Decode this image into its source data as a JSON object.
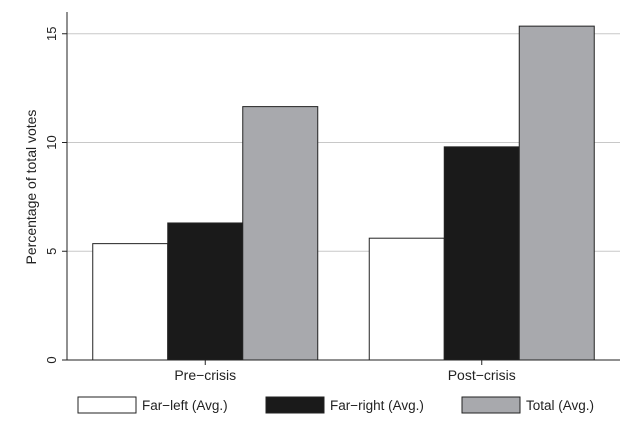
{
  "chart_data": {
    "type": "bar",
    "title": "",
    "xlabel": "",
    "ylabel": "Percentage of total votes",
    "categories": [
      "Pre−crisis",
      "Post−crisis"
    ],
    "series": [
      {
        "name": "Far−left (Avg.)",
        "values": [
          5.35,
          5.6
        ],
        "color": "#ffffff"
      },
      {
        "name": "Far−right (Avg.)",
        "values": [
          6.3,
          9.8
        ],
        "color": "#1a1a1a"
      },
      {
        "name": "Total (Avg.)",
        "values": [
          11.65,
          15.35
        ],
        "color": "#a8a9ad"
      }
    ],
    "yticks": [
      0,
      5,
      10,
      15
    ],
    "ylim": [
      0,
      16
    ],
    "grid": true,
    "legend_position": "bottom"
  }
}
